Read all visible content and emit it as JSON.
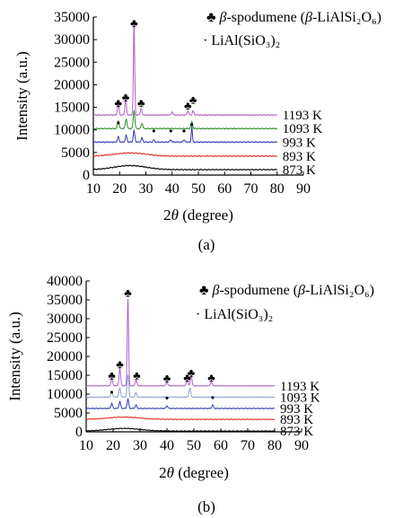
{
  "chart_data": [
    {
      "panel": "(a)",
      "type": "line",
      "title": "",
      "xlabel": "2θ (degree)",
      "ylabel": "Intensity (a.u.)",
      "xlim": [
        10,
        90
      ],
      "ylim": [
        0,
        35000
      ],
      "xticks": [
        "10",
        "20",
        "30",
        "40",
        "50",
        "60",
        "70",
        "80",
        "90"
      ],
      "yticks": [
        "0",
        "5000",
        "10000",
        "15000",
        "20000",
        "25000",
        "30000",
        "35000"
      ],
      "legend": [
        {
          "symbol": "♣",
          "text": "β-spodumene (β-LiAlSi₂O₆)"
        },
        {
          "symbol": "·",
          "text": "LiAl(SiO₃)₂"
        }
      ],
      "series": [
        {
          "name": "873 K",
          "color": "#000000",
          "baseline": 1200,
          "peaks": [
            [
              24,
              900,
              6
            ]
          ]
        },
        {
          "name": "893 K",
          "color": "#e03020",
          "baseline": 4200,
          "peaks": [
            [
              24,
              700,
              6
            ]
          ]
        },
        {
          "name": "993 K",
          "color": "#2d3fb0",
          "baseline": 7300,
          "peaks": [
            [
              19.5,
              1200,
              0.3
            ],
            [
              22.5,
              1500,
              0.3
            ],
            [
              25.5,
              2500,
              0.3
            ],
            [
              28.5,
              900,
              0.3
            ],
            [
              33,
              500,
              0.3
            ],
            [
              39.5,
              500,
              0.3
            ],
            [
              44.5,
              500,
              0.3
            ],
            [
              47.5,
              3500,
              0.2
            ]
          ]
        },
        {
          "name": "1093 K",
          "color": "#2e8b2e",
          "baseline": 10300,
          "peaks": [
            [
              19.5,
              1800,
              0.3
            ],
            [
              22.5,
              2200,
              0.3
            ],
            [
              25.5,
              4000,
              0.3
            ],
            [
              28.5,
              1200,
              0.3
            ],
            [
              47.5,
              1500,
              0.3
            ]
          ]
        },
        {
          "name": "1193 K",
          "color": "#b060c8",
          "baseline": 13300,
          "peaks": [
            [
              19.5,
              2500,
              0.3
            ],
            [
              22.3,
              3500,
              0.3
            ],
            [
              25.5,
              20000,
              0.25
            ],
            [
              28.2,
              1500,
              0.3
            ],
            [
              40,
              700,
              0.3
            ],
            [
              46,
              900,
              0.3
            ],
            [
              48,
              900,
              0.3
            ]
          ]
        }
      ],
      "markers": [
        {
          "symbol": "♣",
          "x": 19.5,
          "y": 15900
        },
        {
          "symbol": "♣",
          "x": 22.3,
          "y": 17200
        },
        {
          "symbol": "♣",
          "x": 25.5,
          "y": 33600
        },
        {
          "symbol": "♣",
          "x": 28.2,
          "y": 15900
        },
        {
          "symbol": "♣",
          "x": 46,
          "y": 15300
        },
        {
          "symbol": "♣",
          "x": 48,
          "y": 16600
        },
        {
          "symbol": "·",
          "x": 19.5,
          "y": 10600
        },
        {
          "symbol": "·",
          "x": 33,
          "y": 8800
        },
        {
          "symbol": "·",
          "x": 39.5,
          "y": 8800
        },
        {
          "symbol": "·",
          "x": 44.5,
          "y": 8800
        },
        {
          "symbol": "·",
          "x": 47.5,
          "y": 10200
        }
      ]
    },
    {
      "panel": "(b)",
      "type": "line",
      "title": "",
      "xlabel": "2θ (degree)",
      "ylabel": "Intensity (a.u.)",
      "xlim": [
        10,
        90
      ],
      "ylim": [
        0,
        40000
      ],
      "xticks": [
        "10",
        "20",
        "30",
        "40",
        "50",
        "60",
        "70",
        "80",
        "90"
      ],
      "yticks": [
        "0",
        "5000",
        "10000",
        "15000",
        "20000",
        "25000",
        "30000",
        "35000",
        "40000"
      ],
      "legend": [
        {
          "symbol": "♣",
          "text": "β-spodumene (β-LiAlSi₂O₆)"
        },
        {
          "symbol": "·",
          "text": "LiAl(SiO₃)₂"
        }
      ],
      "series": [
        {
          "name": "873 K",
          "color": "#000000",
          "baseline": 200,
          "peaks": [
            [
              24,
              700,
              6
            ]
          ]
        },
        {
          "name": "893 K",
          "color": "#e03020",
          "baseline": 3300,
          "peaks": [
            [
              24,
              600,
              6
            ]
          ]
        },
        {
          "name": "993 K",
          "color": "#2d3fb0",
          "baseline": 6200,
          "peaks": [
            [
              19.5,
              1300,
              0.3
            ],
            [
              22.5,
              1800,
              0.3
            ],
            [
              25.5,
              2500,
              0.3
            ],
            [
              28.5,
              900,
              0.3
            ],
            [
              40,
              700,
              0.3
            ],
            [
              57,
              900,
              0.3
            ]
          ]
        },
        {
          "name": "1093 K",
          "color": "#8aa0c8",
          "baseline": 9200,
          "peaks": [
            [
              19.5,
              1500,
              0.3
            ],
            [
              22.5,
              2500,
              0.3
            ],
            [
              25.5,
              6000,
              0.3
            ],
            [
              28.5,
              1200,
              0.3
            ],
            [
              48.5,
              2500,
              0.3
            ]
          ]
        },
        {
          "name": "1193 K",
          "color": "#b060c8",
          "baseline": 12200,
          "peaks": [
            [
              19.5,
              2000,
              0.3
            ],
            [
              22.5,
              4500,
              0.3
            ],
            [
              25.5,
              23000,
              0.25
            ],
            [
              28.5,
              1600,
              0.3
            ],
            [
              40,
              1000,
              0.3
            ],
            [
              47.5,
              1500,
              0.3
            ],
            [
              49,
              2800,
              0.3
            ],
            [
              56.5,
              1000,
              0.3
            ]
          ]
        }
      ],
      "markers": [
        {
          "symbol": "♣",
          "x": 19.5,
          "y": 14900
        },
        {
          "symbol": "♣",
          "x": 22.5,
          "y": 17800
        },
        {
          "symbol": "♣",
          "x": 25.5,
          "y": 36800
        },
        {
          "symbol": "♣",
          "x": 28.8,
          "y": 14900
        },
        {
          "symbol": "♣",
          "x": 40,
          "y": 14200
        },
        {
          "symbol": "♣",
          "x": 47.5,
          "y": 14300
        },
        {
          "symbol": "♣",
          "x": 49,
          "y": 15600
        },
        {
          "symbol": "♣",
          "x": 56.5,
          "y": 14300
        },
        {
          "symbol": "·",
          "x": 19.5,
          "y": 9400
        },
        {
          "symbol": "·",
          "x": 40,
          "y": 7800
        },
        {
          "symbol": "·",
          "x": 57,
          "y": 8000
        }
      ]
    }
  ]
}
